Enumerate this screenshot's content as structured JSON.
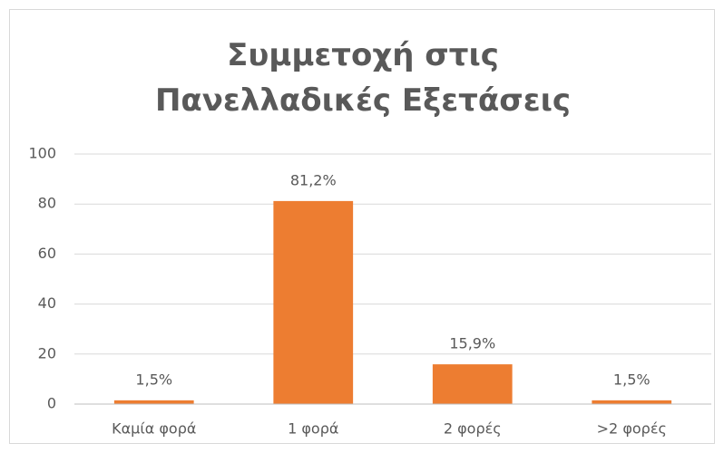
{
  "chart_data": {
    "type": "bar",
    "title": "Συμμετοχή στις Πανελλαδικές Εξετάσεις",
    "categories": [
      "Καμία φορά",
      "1 φορά",
      "2 φορές",
      ">2 φορές"
    ],
    "values": [
      1.5,
      81.2,
      15.9,
      1.5
    ],
    "value_labels": [
      "1,5%",
      "81,2%",
      "15,9%",
      "1,5%"
    ],
    "color": "#ed7d31",
    "ylim": [
      0,
      100
    ],
    "yticks": [
      0,
      20,
      40,
      60,
      80,
      100
    ],
    "grid": true
  }
}
